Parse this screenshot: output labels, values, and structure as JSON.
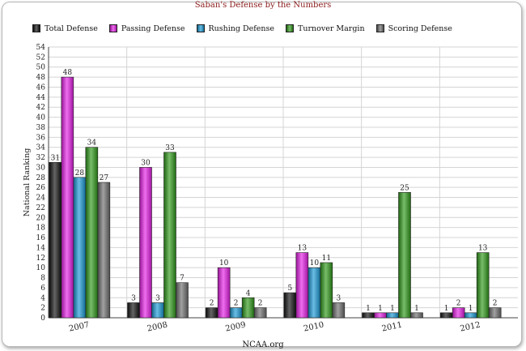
{
  "chart_data": {
    "type": "bar",
    "title": "Saban's Defense by the Numbers",
    "xlabel": "",
    "ylabel": "National Ranking",
    "ylim": [
      0,
      54
    ],
    "ytick_step": 2,
    "grid": true,
    "legend_placement": "top-left",
    "source": "NCAA.org",
    "categories": [
      "2007",
      "2008",
      "2009",
      "2010",
      "2011",
      "2012"
    ],
    "series": [
      {
        "name": "Total Defense",
        "color": "#111111",
        "values": [
          31,
          3,
          2,
          5,
          1,
          1
        ]
      },
      {
        "name": "Passing Defense",
        "color": "#e61ee6",
        "values": [
          48,
          30,
          10,
          13,
          1,
          2
        ]
      },
      {
        "name": "Rushing Defense",
        "color": "#1a9ad6",
        "values": [
          28,
          3,
          2,
          10,
          1,
          1
        ]
      },
      {
        "name": "Turnover Margin",
        "color": "#2f9a1a",
        "values": [
          34,
          33,
          4,
          11,
          25,
          13
        ]
      },
      {
        "name": "Scoring Defense",
        "color": "#6e6e6e",
        "values": [
          27,
          7,
          2,
          3,
          1,
          2
        ]
      }
    ]
  }
}
